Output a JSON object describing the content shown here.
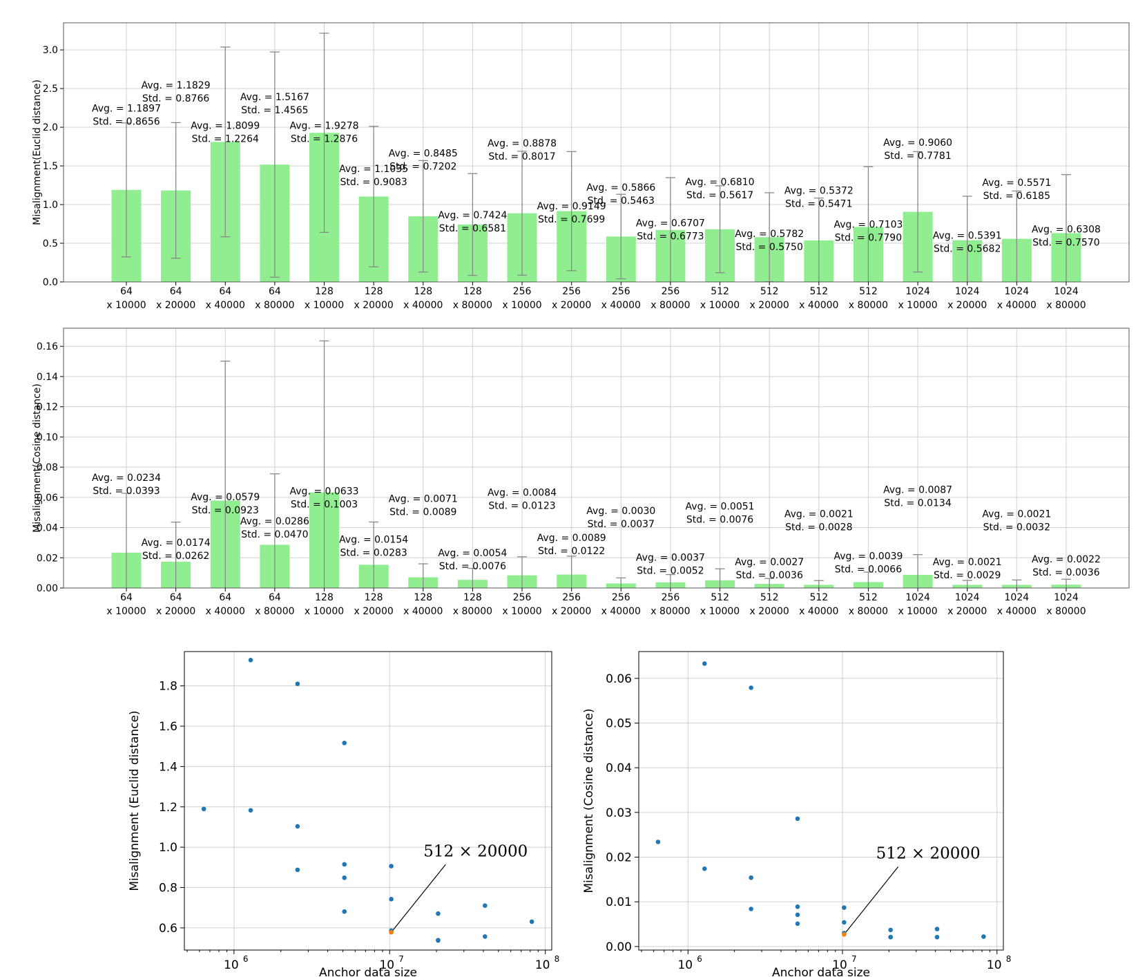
{
  "chart_data": [
    {
      "type": "bar",
      "ylabel": "Misalignment(Euclid distance)",
      "ylim": [
        0,
        3.35
      ],
      "yticks": [
        "0.0",
        "0.5",
        "1.0",
        "1.5",
        "2.0",
        "2.5",
        "3.0"
      ],
      "categories": [
        [
          "64",
          "x 10000"
        ],
        [
          "64",
          "x 20000"
        ],
        [
          "64",
          "x 40000"
        ],
        [
          "64",
          "x 80000"
        ],
        [
          "128",
          "x 10000"
        ],
        [
          "128",
          "x 20000"
        ],
        [
          "128",
          "x 40000"
        ],
        [
          "128",
          "x 80000"
        ],
        [
          "256",
          "x 10000"
        ],
        [
          "256",
          "x 20000"
        ],
        [
          "256",
          "x 40000"
        ],
        [
          "256",
          "x 80000"
        ],
        [
          "512",
          "x 10000"
        ],
        [
          "512",
          "x 20000"
        ],
        [
          "512",
          "x 40000"
        ],
        [
          "512",
          "x 80000"
        ],
        [
          "1024",
          "x 10000"
        ],
        [
          "1024",
          "x 20000"
        ],
        [
          "1024",
          "x 40000"
        ],
        [
          "1024",
          "x 80000"
        ]
      ],
      "values": [
        1.1897,
        1.1829,
        1.8099,
        1.5167,
        1.9278,
        1.1035,
        0.8485,
        0.7424,
        0.8878,
        0.9149,
        0.5866,
        0.6707,
        0.681,
        0.5782,
        0.5372,
        0.7103,
        0.906,
        0.5391,
        0.5571,
        0.6308
      ],
      "errors": [
        0.8656,
        0.8766,
        1.2264,
        1.4565,
        1.2876,
        0.9083,
        0.7202,
        0.6581,
        0.8017,
        0.7699,
        0.5463,
        0.6773,
        0.5617,
        0.575,
        0.5471,
        0.779,
        0.7781,
        0.5682,
        0.6185,
        0.757
      ],
      "labels": [
        [
          "Avg. = 1.1897",
          "Std. = 0.8656"
        ],
        [
          "Avg. = 1.1829",
          "Std. = 0.8766"
        ],
        [
          "Avg. = 1.8099",
          "Std. = 1.2264"
        ],
        [
          "Avg. = 1.5167",
          "Std. = 1.4565"
        ],
        [
          "Avg. = 1.9278",
          "Std. = 1.2876"
        ],
        [
          "Avg. = 1.1035",
          "Std. = 0.9083"
        ],
        [
          "Avg. = 0.8485",
          "Std. = 0.7202"
        ],
        [
          "Avg. = 0.7424",
          "Std. = 0.6581"
        ],
        [
          "Avg. = 0.8878",
          "Std. = 0.8017"
        ],
        [
          "Avg. = 0.9149",
          "Std. = 0.7699"
        ],
        [
          "Avg. = 0.5866",
          "Std. = 0.5463"
        ],
        [
          "Avg. = 0.6707",
          "Std. = 0.6773"
        ],
        [
          "Avg. = 0.6810",
          "Std. = 0.5617"
        ],
        [
          "Avg. = 0.5782",
          "Std. = 0.5750"
        ],
        [
          "Avg. = 0.5372",
          "Std. = 0.5471"
        ],
        [
          "Avg. = 0.7103",
          "Std. = 0.7790"
        ],
        [
          "Avg. = 0.9060",
          "Std. = 0.7781"
        ],
        [
          "Avg. = 0.5391",
          "Std. = 0.5682"
        ],
        [
          "Avg. = 0.5571",
          "Std. = 0.6185"
        ],
        [
          "Avg. = 0.6308",
          "Std. = 0.7570"
        ]
      ],
      "label_anchor": [
        2.2,
        2.5,
        1.98,
        2.35,
        1.98,
        1.42,
        1.62,
        0.82,
        1.75,
        0.94,
        1.18,
        0.72,
        1.25,
        0.58,
        1.14,
        0.7,
        1.76,
        0.56,
        1.24,
        0.64
      ],
      "bar_color": "#90ee90",
      "grid": true
    },
    {
      "type": "bar",
      "ylabel": "Misalignment(Cosine distance)",
      "ylim": [
        0,
        0.172
      ],
      "yticks": [
        "0.00",
        "0.02",
        "0.04",
        "0.06",
        "0.08",
        "0.10",
        "0.12",
        "0.14",
        "0.16"
      ],
      "categories": [
        [
          "64",
          "x 10000"
        ],
        [
          "64",
          "x 20000"
        ],
        [
          "64",
          "x 40000"
        ],
        [
          "64",
          "x 80000"
        ],
        [
          "128",
          "x 10000"
        ],
        [
          "128",
          "x 20000"
        ],
        [
          "128",
          "x 40000"
        ],
        [
          "128",
          "x 80000"
        ],
        [
          "256",
          "x 10000"
        ],
        [
          "256",
          "x 20000"
        ],
        [
          "256",
          "x 40000"
        ],
        [
          "256",
          "x 80000"
        ],
        [
          "512",
          "x 10000"
        ],
        [
          "512",
          "x 20000"
        ],
        [
          "512",
          "x 40000"
        ],
        [
          "512",
          "x 80000"
        ],
        [
          "1024",
          "x 10000"
        ],
        [
          "1024",
          "x 20000"
        ],
        [
          "1024",
          "x 40000"
        ],
        [
          "1024",
          "x 80000"
        ]
      ],
      "values": [
        0.0234,
        0.0174,
        0.0579,
        0.0286,
        0.0633,
        0.0154,
        0.0071,
        0.0054,
        0.0084,
        0.0089,
        0.003,
        0.0037,
        0.0051,
        0.0027,
        0.0021,
        0.0039,
        0.0087,
        0.0021,
        0.0021,
        0.0022
      ],
      "errors": [
        0.0393,
        0.0262,
        0.0923,
        0.047,
        0.1003,
        0.0283,
        0.0089,
        0.0076,
        0.0123,
        0.0122,
        0.0037,
        0.0052,
        0.0076,
        0.0036,
        0.0028,
        0.0066,
        0.0134,
        0.0029,
        0.0032,
        0.0036
      ],
      "labels": [
        [
          "Avg. = 0.0234",
          "Std. = 0.0393"
        ],
        [
          "Avg. = 0.0174",
          "Std. = 0.0262"
        ],
        [
          "Avg. = 0.0579",
          "Std. = 0.0923"
        ],
        [
          "Avg. = 0.0286",
          "Std. = 0.0470"
        ],
        [
          "Avg. = 0.0633",
          "Std. = 0.1003"
        ],
        [
          "Avg. = 0.0154",
          "Std. = 0.0283"
        ],
        [
          "Avg. = 0.0071",
          "Std. = 0.0089"
        ],
        [
          "Avg. = 0.0054",
          "Std. = 0.0076"
        ],
        [
          "Avg. = 0.0084",
          "Std. = 0.0123"
        ],
        [
          "Avg. = 0.0089",
          "Std. = 0.0122"
        ],
        [
          "Avg. = 0.0030",
          "Std. = 0.0037"
        ],
        [
          "Avg. = 0.0037",
          "Std. = 0.0052"
        ],
        [
          "Avg. = 0.0051",
          "Std. = 0.0076"
        ],
        [
          "Avg. = 0.0027",
          "Std. = 0.0036"
        ],
        [
          "Avg. = 0.0021",
          "Std. = 0.0028"
        ],
        [
          "Avg. = 0.0039",
          "Std. = 0.0066"
        ],
        [
          "Avg. = 0.0087",
          "Std. = 0.0134"
        ],
        [
          "Avg. = 0.0021",
          "Std. = 0.0029"
        ],
        [
          "Avg. = 0.0021",
          "Std. = 0.0032"
        ],
        [
          "Avg. = 0.0022",
          "Std. = 0.0036"
        ]
      ],
      "label_anchor": [
        0.071,
        0.028,
        0.058,
        0.042,
        0.062,
        0.03,
        0.057,
        0.021,
        0.061,
        0.031,
        0.049,
        0.018,
        0.052,
        0.015,
        0.047,
        0.019,
        0.063,
        0.015,
        0.047,
        0.017
      ],
      "bar_color": "#90ee90",
      "grid": true
    },
    {
      "type": "scatter",
      "xlabel": "Anchor data size",
      "ylabel": "Misalignment (Euclid distance)",
      "xscale": "log",
      "xlim": [
        480000,
        110000000
      ],
      "ylim": [
        0.49,
        1.97
      ],
      "xticks": [
        1000000,
        10000000,
        100000000
      ],
      "xtick_labels": [
        "10",
        "10",
        "10"
      ],
      "xtick_exponents": [
        "6",
        "7",
        "8"
      ],
      "yticks": [
        "0.6",
        "0.8",
        "1.0",
        "1.2",
        "1.4",
        "1.6",
        "1.8"
      ],
      "x": [
        640000,
        1280000,
        2560000,
        5120000,
        1280000,
        2560000,
        5120000,
        10240000,
        2560000,
        5120000,
        10240000,
        20480000,
        5120000,
        10240000,
        20480000,
        40960000,
        10240000,
        20480000,
        40960000,
        81920000
      ],
      "y": [
        1.1897,
        1.1829,
        1.8099,
        1.5167,
        1.9278,
        1.1035,
        0.8485,
        0.7424,
        0.8878,
        0.9149,
        0.5866,
        0.6707,
        0.681,
        0.5782,
        0.5372,
        0.7103,
        0.906,
        0.5391,
        0.5571,
        0.6308
      ],
      "highlight_index": 13,
      "annotation": "512 × 20000",
      "annotation_at": [
        16500000,
        0.955
      ],
      "point_color": "#1f77b4",
      "highlight_color": "#ff7f0e",
      "grid": true
    },
    {
      "type": "scatter",
      "xlabel": "Anchor data size",
      "ylabel": "Misalignment (Cosine distance)",
      "xscale": "log",
      "xlim": [
        480000,
        110000000
      ],
      "ylim": [
        -0.0008,
        0.066
      ],
      "xticks": [
        1000000,
        10000000,
        100000000
      ],
      "xtick_labels": [
        "10",
        "10",
        "10"
      ],
      "xtick_exponents": [
        "6",
        "7",
        "8"
      ],
      "yticks": [
        "0.00",
        "0.01",
        "0.02",
        "0.03",
        "0.04",
        "0.05",
        "0.06"
      ],
      "x": [
        640000,
        1280000,
        2560000,
        5120000,
        1280000,
        2560000,
        5120000,
        10240000,
        2560000,
        5120000,
        10240000,
        20480000,
        5120000,
        10240000,
        20480000,
        40960000,
        10240000,
        20480000,
        40960000,
        81920000
      ],
      "y": [
        0.0234,
        0.0174,
        0.0579,
        0.0286,
        0.0633,
        0.0154,
        0.0071,
        0.0054,
        0.0084,
        0.0089,
        0.003,
        0.0037,
        0.0051,
        0.0027,
        0.0021,
        0.0039,
        0.0087,
        0.0021,
        0.0021,
        0.0022
      ],
      "highlight_index": 13,
      "annotation": "512 × 20000",
      "annotation_at": [
        16500000,
        0.0197
      ],
      "point_color": "#1f77b4",
      "highlight_color": "#ff7f0e",
      "grid": true
    }
  ]
}
